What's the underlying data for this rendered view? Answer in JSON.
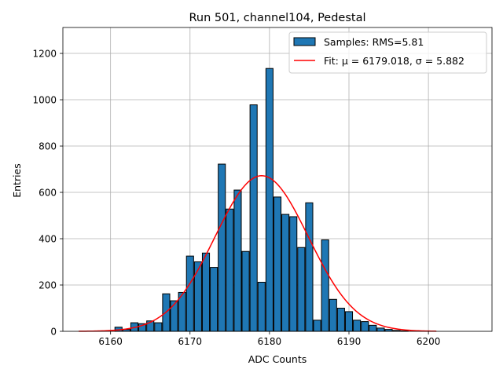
{
  "chart_data": {
    "type": "bar",
    "title": "Run 501, channel104, Pedestal",
    "xlabel": "ADC Counts",
    "ylabel": "Entries",
    "xlim": [
      6154,
      6208
    ],
    "ylim": [
      0,
      1312
    ],
    "xticks": [
      6160,
      6170,
      6180,
      6190,
      6200
    ],
    "yticks": [
      0,
      200,
      400,
      600,
      800,
      1000,
      1200
    ],
    "grid": true,
    "legend_position": "top-right",
    "bin_width": 0.9,
    "series": [
      {
        "name": "Samples: RMS=5.81",
        "type": "histogram",
        "color": "#1f77b4",
        "bins": [
          {
            "x": 6161,
            "value": 18
          },
          {
            "x": 6162,
            "value": 8
          },
          {
            "x": 6163,
            "value": 37
          },
          {
            "x": 6164,
            "value": 33
          },
          {
            "x": 6165,
            "value": 45
          },
          {
            "x": 6166,
            "value": 37
          },
          {
            "x": 6167,
            "value": 162
          },
          {
            "x": 6168,
            "value": 132
          },
          {
            "x": 6169,
            "value": 168
          },
          {
            "x": 6170,
            "value": 325
          },
          {
            "x": 6171,
            "value": 300
          },
          {
            "x": 6172,
            "value": 338
          },
          {
            "x": 6173,
            "value": 276
          },
          {
            "x": 6174,
            "value": 722
          },
          {
            "x": 6175,
            "value": 528
          },
          {
            "x": 6176,
            "value": 610
          },
          {
            "x": 6177,
            "value": 345
          },
          {
            "x": 6178,
            "value": 978
          },
          {
            "x": 6179,
            "value": 212
          },
          {
            "x": 6180,
            "value": 1135
          },
          {
            "x": 6181,
            "value": 580
          },
          {
            "x": 6182,
            "value": 505
          },
          {
            "x": 6183,
            "value": 495
          },
          {
            "x": 6184,
            "value": 362
          },
          {
            "x": 6185,
            "value": 555
          },
          {
            "x": 6186,
            "value": 48
          },
          {
            "x": 6187,
            "value": 395
          },
          {
            "x": 6188,
            "value": 138
          },
          {
            "x": 6189,
            "value": 100
          },
          {
            "x": 6190,
            "value": 85
          },
          {
            "x": 6191,
            "value": 48
          },
          {
            "x": 6192,
            "value": 42
          },
          {
            "x": 6193,
            "value": 26
          },
          {
            "x": 6194,
            "value": 14
          },
          {
            "x": 6195,
            "value": 8
          },
          {
            "x": 6196,
            "value": 4
          },
          {
            "x": 6197,
            "value": 2
          }
        ]
      },
      {
        "name": "Fit: μ = 6179.018, σ = 5.882",
        "type": "gaussian",
        "color": "#ff0000",
        "mu": 6179.018,
        "sigma": 5.882,
        "amplitude": 672,
        "x_range": [
          6156,
          6201
        ]
      }
    ]
  }
}
